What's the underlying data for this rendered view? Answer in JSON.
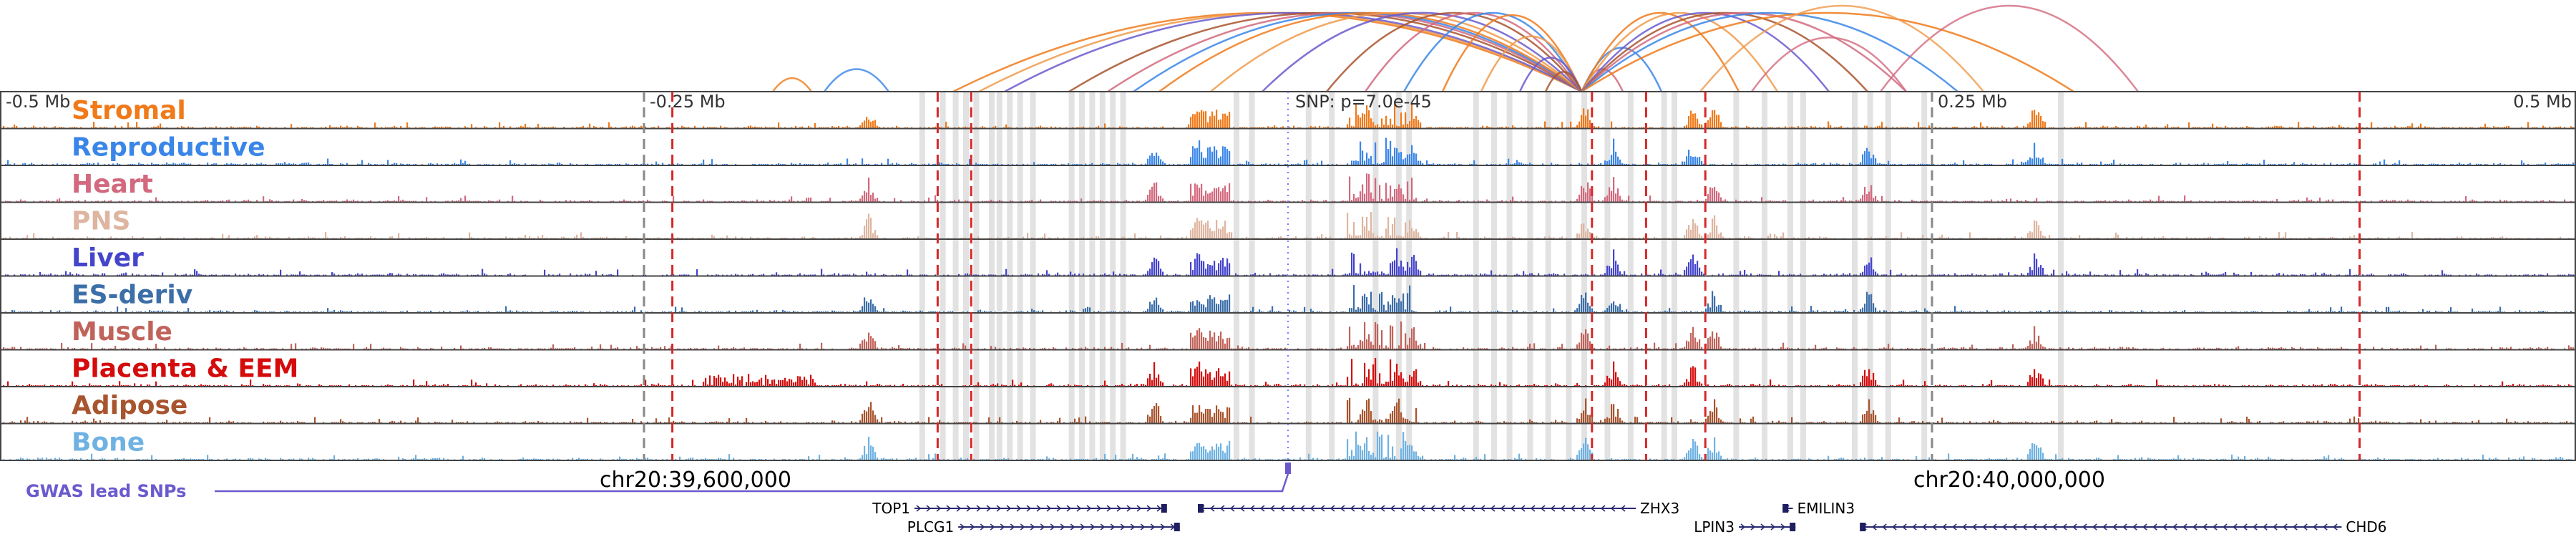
{
  "chart_data": {
    "type": "genome-browser",
    "title": "",
    "region": {
      "chrom": "chr20",
      "start_offset_mb": -0.5,
      "end_offset_mb": 0.5
    },
    "axis_ticks": [
      "-0.5 Mb",
      "-0.25 Mb",
      "0.25 Mb",
      "0.5 Mb"
    ],
    "axis_tick_offsets_mb": [
      -0.5,
      -0.25,
      0.25,
      0.5
    ],
    "snp_label": "SNP: p=7.0e-45",
    "coordinate_labels": [
      "chr20:39,600,000",
      "chr20:40,000,000"
    ],
    "coordinate_label_offsets_mb": [
      -0.23,
      0.28
    ],
    "gwas_label": "GWAS lead SNPs",
    "gwas_color": "#6a5acd",
    "tracks": [
      {
        "name": "Stromal",
        "color": "#f07a1a"
      },
      {
        "name": "Reproductive",
        "color": "#3a86e8"
      },
      {
        "name": "Heart",
        "color": "#d2697e"
      },
      {
        "name": "PNS",
        "color": "#deb5a0"
      },
      {
        "name": "Liver",
        "color": "#4545cc"
      },
      {
        "name": "ES-deriv",
        "color": "#3c6ea8"
      },
      {
        "name": "Muscle",
        "color": "#c0635a"
      },
      {
        "name": "Placenta & EEM",
        "color": "#d40c0c"
      },
      {
        "name": "Adipose",
        "color": "#a8542e"
      },
      {
        "name": "Bone",
        "color": "#6fb2e2"
      }
    ],
    "genes": [
      {
        "name": "TOP1",
        "start_offset_mb": -0.145,
        "end_offset_mb": -0.047,
        "strand": "+",
        "label_side": "left",
        "row": 0
      },
      {
        "name": "PLCG1",
        "start_offset_mb": -0.128,
        "end_offset_mb": -0.042,
        "strand": "+",
        "label_side": "left",
        "row": 1
      },
      {
        "name": "ZHX3",
        "start_offset_mb": -0.035,
        "end_offset_mb": 0.135,
        "strand": "-",
        "label_side": "right",
        "row": 0
      },
      {
        "name": "LPIN3",
        "start_offset_mb": 0.175,
        "end_offset_mb": 0.197,
        "strand": "+",
        "label_side": "left",
        "row": 1
      },
      {
        "name": "EMILIN3",
        "start_offset_mb": 0.192,
        "end_offset_mb": 0.196,
        "strand": "-",
        "label_side": "right",
        "row": 0
      },
      {
        "name": "CHD6",
        "start_offset_mb": 0.222,
        "end_offset_mb": 0.409,
        "strand": "-",
        "label_side": "right",
        "row": 1
      }
    ],
    "snp_offset_mb": 0.0,
    "red_dashed_line_offsets_mb": [
      -0.239,
      -0.136,
      -0.123,
      0.118,
      0.139,
      0.162,
      0.416
    ],
    "gray_dashed_line_offsets_mb": [
      -0.25,
      0.25
    ],
    "highlight_offsets_mb": [
      -0.142,
      -0.068,
      -0.134,
      -0.129,
      -0.125,
      -0.121,
      -0.115,
      -0.112,
      -0.108,
      -0.104,
      -0.099,
      -0.084,
      -0.08,
      -0.076,
      -0.072,
      -0.064,
      -0.02,
      -0.014,
      0.008,
      0.017,
      0.034,
      0.043,
      0.047,
      0.073,
      0.08,
      0.086,
      0.094,
      0.101,
      0.109,
      0.115,
      0.124,
      0.133,
      0.146,
      0.15,
      0.174,
      0.185,
      0.195,
      0.2,
      0.22,
      0.226,
      0.233,
      0.247,
      0.3
    ],
    "peak_offsets_mb": [
      -0.163,
      -0.052,
      -0.035,
      0.03,
      0.042,
      0.048,
      0.115,
      0.126,
      0.157,
      0.165,
      0.225,
      0.29
    ],
    "loop_anchor_offset_mb": 0.114,
    "loop_partner_offsets_mb": [
      -0.13,
      -0.12,
      -0.11,
      -0.085,
      -0.07,
      -0.06,
      -0.05,
      -0.03,
      -0.01,
      0.015,
      0.03,
      0.045,
      0.06,
      0.075,
      0.09,
      0.1,
      0.13,
      0.145,
      0.175,
      0.19,
      0.21,
      0.225,
      0.24,
      0.26,
      0.305
    ]
  }
}
